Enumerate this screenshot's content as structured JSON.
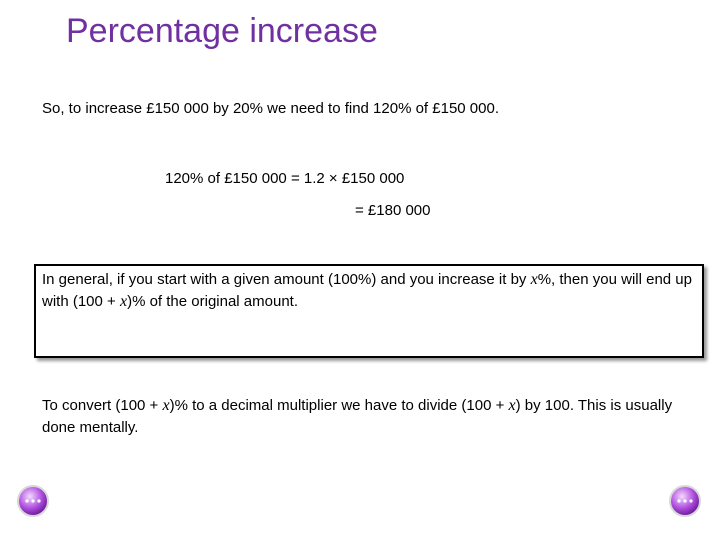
{
  "header": {
    "title": "Percentage increase"
  },
  "intro": "So, to increase £150 000 by 20% we need to find 120% of £150 000.",
  "working": {
    "line1": "120% of £150 000 = 1.2 × £150 000",
    "line2": "= £180 000"
  },
  "general_box": {
    "parts": [
      "In general, if you start with a given amount (100%) and you increase it by ",
      "x",
      "%, then you will end up with (100 + ",
      "x",
      ")% of the original amount."
    ]
  },
  "conversion": {
    "parts": [
      "To convert (100 + ",
      "x",
      ")% to a decimal multiplier we have to divide (100 + ",
      "x",
      ") by 100. This is usually done mentally."
    ]
  }
}
